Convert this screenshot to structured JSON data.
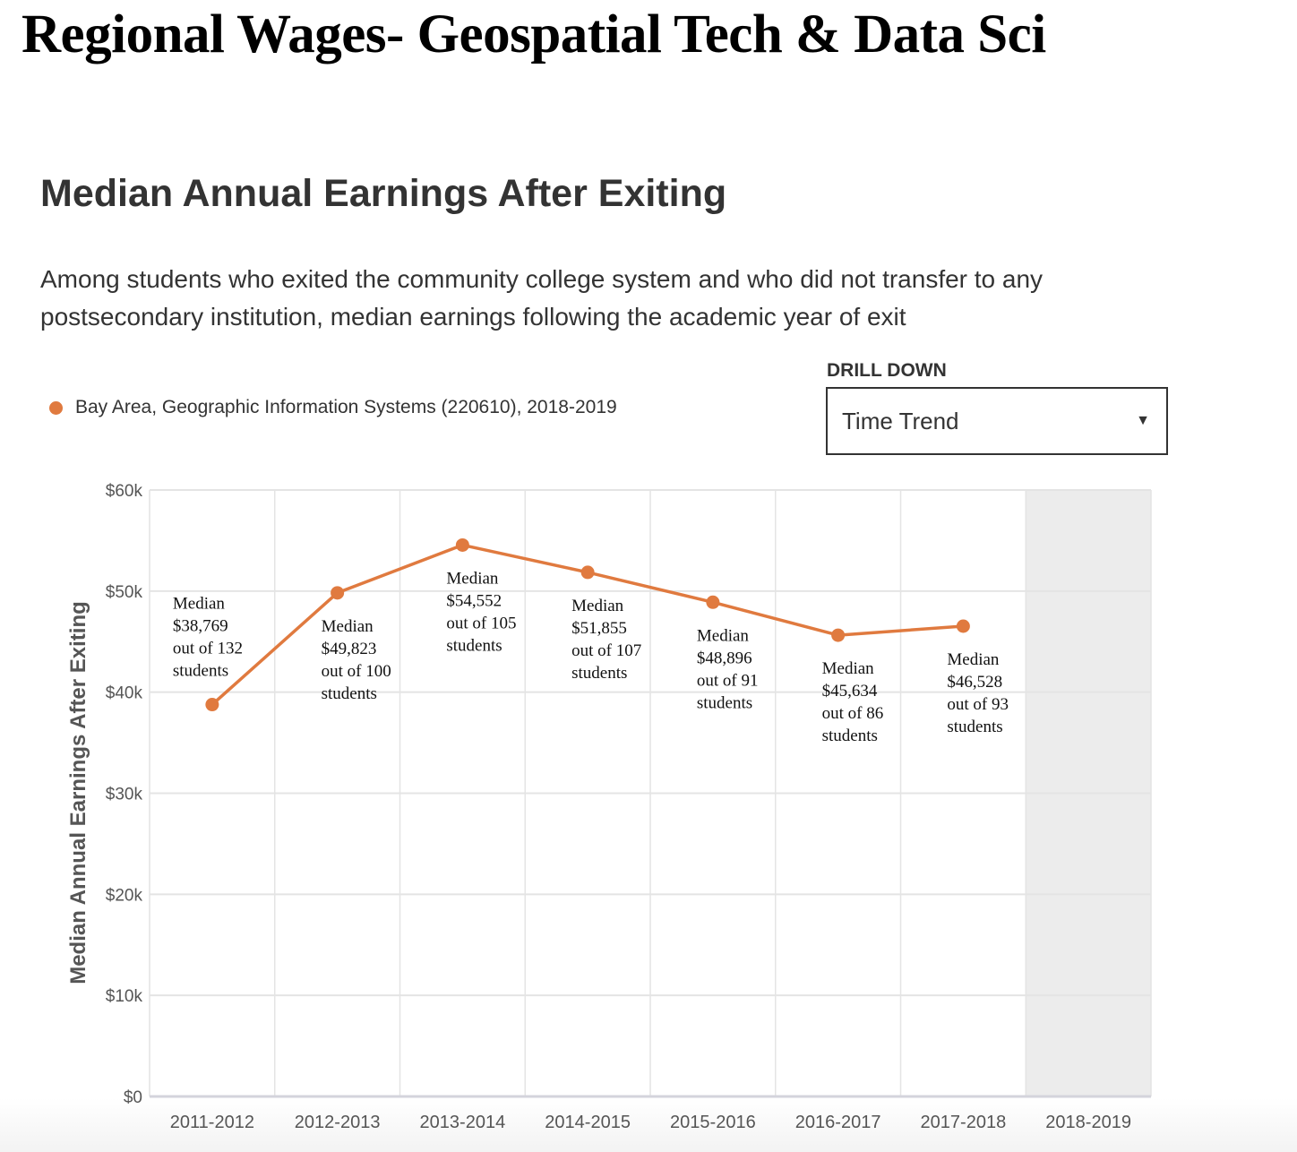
{
  "page": {
    "title": "Regional Wages- Geospatial Tech & Data Sci"
  },
  "section": {
    "title": "Median Annual Earnings After Exiting",
    "description": "Among students who exited the community college system and who did not transfer to any postsecondary institution, median earnings following the academic year of exit"
  },
  "drill_down": {
    "label": "DRILL DOWN",
    "selected": "Time Trend",
    "caret_icon": "caret-down-icon"
  },
  "colors": {
    "series": "#e07a3f",
    "grid": "#e4e4e4",
    "shaded": "#ececec",
    "axis": "#d4d4dc"
  },
  "chart_data": {
    "type": "line",
    "title": "Median Annual Earnings After Exiting",
    "xlabel": "",
    "ylabel": "Median Annual Earnings After Exiting",
    "ylim": [
      0,
      60000
    ],
    "grid": true,
    "legend_position": "top-left",
    "categories": [
      "2011-2012",
      "2012-2013",
      "2013-2014",
      "2014-2015",
      "2015-2016",
      "2016-2017",
      "2017-2018",
      "2018-2019"
    ],
    "y_ticks": [
      {
        "value": 0,
        "label": "$0"
      },
      {
        "value": 10000,
        "label": "$10k"
      },
      {
        "value": 20000,
        "label": "$20k"
      },
      {
        "value": 30000,
        "label": "$30k"
      },
      {
        "value": 40000,
        "label": "$40k"
      },
      {
        "value": 50000,
        "label": "$50k"
      },
      {
        "value": 60000,
        "label": "$60k"
      }
    ],
    "highlighted_category": "2018-2019",
    "series": [
      {
        "name": "Bay Area, Geographic Information Systems (220610), 2018-2019",
        "values": [
          38769,
          49823,
          54552,
          51855,
          48896,
          45634,
          46528,
          null
        ],
        "annotations": [
          [
            "Median",
            "$38,769",
            "out of 132",
            "students"
          ],
          [
            "Median",
            "$49,823",
            "out of 100",
            "students"
          ],
          [
            "Median",
            "$54,552",
            "out of 105",
            "students"
          ],
          [
            "Median",
            "$51,855",
            "out of 107",
            "students"
          ],
          [
            "Median",
            "$48,896",
            "out of 91",
            "students"
          ],
          [
            "Median",
            "$45,634",
            "out of 86",
            "students"
          ],
          [
            "Median",
            "$46,528",
            "out of 93",
            "students"
          ]
        ]
      }
    ]
  }
}
